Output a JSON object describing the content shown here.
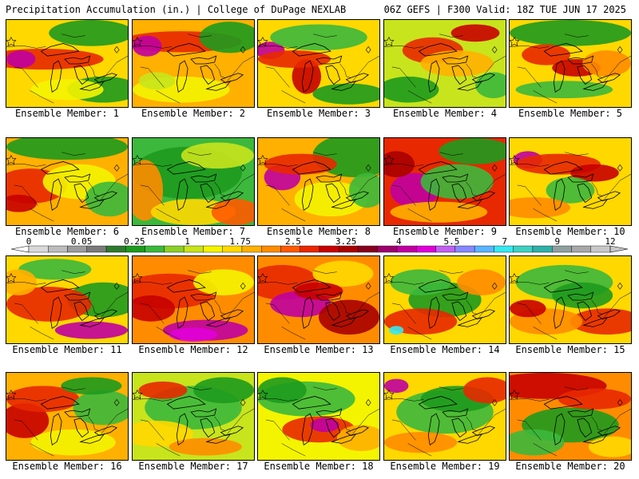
{
  "header": {
    "left_title": "Precipitation Accumulation (in.) | College of DuPage NEXLAB",
    "right_title": "06Z GEFS | F300 Valid: 18Z TUE JUN 17 2025"
  },
  "legend": {
    "tick_labels": [
      "0",
      "0.05",
      "0.25",
      "1",
      "1.75",
      "2.5",
      "3.25",
      "4",
      "5.5",
      "7",
      "9",
      "12"
    ],
    "colors": [
      "#d9d9d9",
      "#bdbdbd",
      "#9c9c9c",
      "#7a7a7a",
      "#2f7a2f",
      "#1e9a1e",
      "#3cb83c",
      "#8ccf2a",
      "#c8e41c",
      "#f4f400",
      "#ffd800",
      "#ffb000",
      "#ff8c00",
      "#ff5a00",
      "#e82800",
      "#c80000",
      "#a80000",
      "#880020",
      "#9c006c",
      "#c000a0",
      "#e000d8",
      "#c060f0",
      "#8888ff",
      "#5cb4ff",
      "#38e8f0",
      "#40d0c0",
      "#30b0a8",
      "#90a0a0",
      "#a8a8a8",
      "#c8c8c8"
    ]
  },
  "panels": [
    {
      "label": "Ensemble Member: 1",
      "base": "#ffd800",
      "blobs": [
        [
          "#e82800",
          0.3,
          0.45,
          0.5,
          0.12
        ],
        [
          "#c000a0",
          0.12,
          0.45,
          0.12,
          0.1
        ],
        [
          "#1e9a1e",
          0.7,
          0.15,
          0.35,
          0.15
        ],
        [
          "#1e9a1e",
          0.8,
          0.8,
          0.3,
          0.15
        ],
        [
          "#f4f400",
          0.5,
          0.8,
          0.3,
          0.12
        ]
      ]
    },
    {
      "label": "Ensemble Member: 2",
      "base": "#ffb000",
      "blobs": [
        [
          "#e82800",
          0.4,
          0.25,
          0.5,
          0.12
        ],
        [
          "#c000a0",
          0.12,
          0.3,
          0.12,
          0.12
        ],
        [
          "#1e9a1e",
          0.8,
          0.2,
          0.25,
          0.18
        ],
        [
          "#f4f400",
          0.4,
          0.8,
          0.4,
          0.15
        ],
        [
          "#c8e41c",
          0.2,
          0.7,
          0.15,
          0.1
        ]
      ]
    },
    {
      "label": "Ensemble Member: 3",
      "base": "#ffd800",
      "blobs": [
        [
          "#c000a0",
          0.1,
          0.35,
          0.12,
          0.1
        ],
        [
          "#3cb83c",
          0.5,
          0.2,
          0.4,
          0.15
        ],
        [
          "#c80000",
          0.4,
          0.65,
          0.12,
          0.2
        ],
        [
          "#1e9a1e",
          0.75,
          0.85,
          0.3,
          0.12
        ],
        [
          "#e82800",
          0.3,
          0.45,
          0.3,
          0.1
        ]
      ]
    },
    {
      "label": "Ensemble Member: 4",
      "base": "#c8e41c",
      "blobs": [
        [
          "#1e9a1e",
          0.2,
          0.8,
          0.25,
          0.15
        ],
        [
          "#e82800",
          0.4,
          0.35,
          0.25,
          0.15
        ],
        [
          "#c80000",
          0.75,
          0.15,
          0.2,
          0.1
        ],
        [
          "#ffb000",
          0.6,
          0.5,
          0.3,
          0.15
        ],
        [
          "#3cb83c",
          0.9,
          0.75,
          0.15,
          0.15
        ]
      ]
    },
    {
      "label": "Ensemble Member: 5",
      "base": "#ffd800",
      "blobs": [
        [
          "#1e9a1e",
          0.5,
          0.15,
          0.5,
          0.15
        ],
        [
          "#e82800",
          0.3,
          0.4,
          0.2,
          0.12
        ],
        [
          "#c80000",
          0.55,
          0.55,
          0.2,
          0.1
        ],
        [
          "#3cb83c",
          0.45,
          0.8,
          0.4,
          0.1
        ],
        [
          "#ff8c00",
          0.8,
          0.5,
          0.2,
          0.15
        ]
      ]
    },
    {
      "label": "Ensemble Member: 6",
      "base": "#ffb000",
      "blobs": [
        [
          "#1e9a1e",
          0.5,
          0.1,
          0.5,
          0.15
        ],
        [
          "#e82800",
          0.2,
          0.55,
          0.3,
          0.2
        ],
        [
          "#f4f400",
          0.6,
          0.5,
          0.3,
          0.2
        ],
        [
          "#3cb83c",
          0.85,
          0.7,
          0.2,
          0.2
        ],
        [
          "#c80000",
          0.1,
          0.75,
          0.15,
          0.1
        ]
      ]
    },
    {
      "label": "Ensemble Member: 7",
      "base": "#3cb83c",
      "blobs": [
        [
          "#1e9a1e",
          0.45,
          0.4,
          0.45,
          0.3
        ],
        [
          "#ff8c00",
          0.1,
          0.6,
          0.15,
          0.35
        ],
        [
          "#ffd800",
          0.5,
          0.85,
          0.35,
          0.15
        ],
        [
          "#ff5a00",
          0.85,
          0.85,
          0.2,
          0.15
        ],
        [
          "#c8e41c",
          0.7,
          0.2,
          0.3,
          0.15
        ]
      ]
    },
    {
      "label": "Ensemble Member: 8",
      "base": "#ffb000",
      "blobs": [
        [
          "#1e9a1e",
          0.8,
          0.2,
          0.35,
          0.25
        ],
        [
          "#c000a0",
          0.2,
          0.45,
          0.15,
          0.15
        ],
        [
          "#e82800",
          0.35,
          0.3,
          0.3,
          0.12
        ],
        [
          "#f4f400",
          0.6,
          0.7,
          0.3,
          0.2
        ],
        [
          "#3cb83c",
          0.9,
          0.6,
          0.15,
          0.2
        ]
      ]
    },
    {
      "label": "Ensemble Member: 9",
      "base": "#e82800",
      "blobs": [
        [
          "#c000a0",
          0.25,
          0.6,
          0.2,
          0.2
        ],
        [
          "#1e9a1e",
          0.75,
          0.15,
          0.3,
          0.15
        ],
        [
          "#3cb83c",
          0.6,
          0.5,
          0.3,
          0.2
        ],
        [
          "#ffb000",
          0.45,
          0.85,
          0.4,
          0.12
        ],
        [
          "#a80000",
          0.1,
          0.3,
          0.15,
          0.15
        ]
      ]
    },
    {
      "label": "Ensemble Member: 10",
      "base": "#ffd800",
      "blobs": [
        [
          "#c000a0",
          0.15,
          0.25,
          0.12,
          0.1
        ],
        [
          "#e82800",
          0.4,
          0.3,
          0.35,
          0.12
        ],
        [
          "#c80000",
          0.7,
          0.4,
          0.2,
          0.1
        ],
        [
          "#3cb83c",
          0.5,
          0.6,
          0.2,
          0.15
        ],
        [
          "#ff8c00",
          0.2,
          0.8,
          0.3,
          0.12
        ]
      ]
    },
    {
      "label": "Ensemble Member: 11",
      "base": "#ffd800",
      "blobs": [
        [
          "#1e9a1e",
          0.8,
          0.5,
          0.3,
          0.2
        ],
        [
          "#e82800",
          0.35,
          0.55,
          0.35,
          0.2
        ],
        [
          "#c000a0",
          0.7,
          0.85,
          0.3,
          0.1
        ],
        [
          "#3cb83c",
          0.4,
          0.15,
          0.3,
          0.12
        ],
        [
          "#ffb000",
          0.1,
          0.3,
          0.15,
          0.15
        ]
      ]
    },
    {
      "label": "Ensemble Member: 12",
      "base": "#ff8c00",
      "blobs": [
        [
          "#e82800",
          0.3,
          0.4,
          0.4,
          0.2
        ],
        [
          "#c000a0",
          0.6,
          0.85,
          0.35,
          0.12
        ],
        [
          "#e000d8",
          0.5,
          0.9,
          0.2,
          0.08
        ],
        [
          "#f4f400",
          0.75,
          0.3,
          0.25,
          0.15
        ],
        [
          "#c80000",
          0.15,
          0.6,
          0.2,
          0.15
        ]
      ]
    },
    {
      "label": "Ensemble Member: 13",
      "base": "#ff8c00",
      "blobs": [
        [
          "#e82800",
          0.2,
          0.3,
          0.3,
          0.2
        ],
        [
          "#c000a0",
          0.35,
          0.55,
          0.25,
          0.15
        ],
        [
          "#a80000",
          0.75,
          0.7,
          0.25,
          0.2
        ],
        [
          "#ffd800",
          0.7,
          0.2,
          0.25,
          0.15
        ],
        [
          "#c80000",
          0.5,
          0.4,
          0.2,
          0.1
        ]
      ]
    },
    {
      "label": "Ensemble Member: 14",
      "base": "#ffd800",
      "blobs": [
        [
          "#1e9a1e",
          0.5,
          0.5,
          0.3,
          0.2
        ],
        [
          "#3cb83c",
          0.3,
          0.3,
          0.25,
          0.15
        ],
        [
          "#e82800",
          0.3,
          0.75,
          0.3,
          0.15
        ],
        [
          "#38e8f0",
          0.1,
          0.85,
          0.06,
          0.05
        ],
        [
          "#ff8c00",
          0.8,
          0.3,
          0.2,
          0.15
        ]
      ]
    },
    {
      "label": "Ensemble Member: 15",
      "base": "#ffd800",
      "blobs": [
        [
          "#3cb83c",
          0.45,
          0.3,
          0.4,
          0.2
        ],
        [
          "#1e9a1e",
          0.6,
          0.45,
          0.25,
          0.15
        ],
        [
          "#e82800",
          0.8,
          0.75,
          0.3,
          0.15
        ],
        [
          "#ff8c00",
          0.3,
          0.75,
          0.3,
          0.15
        ],
        [
          "#c80000",
          0.15,
          0.6,
          0.15,
          0.1
        ]
      ]
    },
    {
      "label": "Ensemble Member: 16",
      "base": "#ffb000",
      "blobs": [
        [
          "#c80000",
          0.15,
          0.55,
          0.2,
          0.2
        ],
        [
          "#e82800",
          0.3,
          0.3,
          0.3,
          0.15
        ],
        [
          "#3cb83c",
          0.8,
          0.4,
          0.25,
          0.2
        ],
        [
          "#f4f400",
          0.55,
          0.8,
          0.35,
          0.15
        ],
        [
          "#1e9a1e",
          0.7,
          0.15,
          0.25,
          0.1
        ]
      ]
    },
    {
      "label": "Ensemble Member: 17",
      "base": "#c8e41c",
      "blobs": [
        [
          "#3cb83c",
          0.5,
          0.4,
          0.4,
          0.25
        ],
        [
          "#ffd800",
          0.2,
          0.7,
          0.3,
          0.15
        ],
        [
          "#e82800",
          0.25,
          0.2,
          0.2,
          0.1
        ],
        [
          "#1e9a1e",
          0.75,
          0.2,
          0.25,
          0.15
        ],
        [
          "#ff8c00",
          0.6,
          0.85,
          0.3,
          0.1
        ]
      ]
    },
    {
      "label": "Ensemble Member: 18",
      "base": "#f4f400",
      "blobs": [
        [
          "#3cb83c",
          0.4,
          0.3,
          0.4,
          0.2
        ],
        [
          "#e82800",
          0.5,
          0.65,
          0.3,
          0.15
        ],
        [
          "#c000a0",
          0.55,
          0.6,
          0.12,
          0.08
        ],
        [
          "#1e9a1e",
          0.2,
          0.2,
          0.2,
          0.15
        ],
        [
          "#ffb000",
          0.85,
          0.75,
          0.2,
          0.15
        ]
      ]
    },
    {
      "label": "Ensemble Member: 19",
      "base": "#ffd800",
      "blobs": [
        [
          "#3cb83c",
          0.5,
          0.45,
          0.4,
          0.25
        ],
        [
          "#1e9a1e",
          0.6,
          0.3,
          0.3,
          0.15
        ],
        [
          "#e82800",
          0.85,
          0.2,
          0.2,
          0.15
        ],
        [
          "#c000a0",
          0.1,
          0.15,
          0.1,
          0.08
        ],
        [
          "#ff8c00",
          0.3,
          0.8,
          0.3,
          0.12
        ]
      ]
    },
    {
      "label": "Ensemble Member: 20",
      "base": "#ff8c00",
      "blobs": [
        [
          "#c80000",
          0.3,
          0.15,
          0.5,
          0.15
        ],
        [
          "#1e9a1e",
          0.5,
          0.6,
          0.4,
          0.2
        ],
        [
          "#3cb83c",
          0.2,
          0.8,
          0.25,
          0.15
        ],
        [
          "#e82800",
          0.7,
          0.3,
          0.3,
          0.12
        ],
        [
          "#ffd800",
          0.85,
          0.85,
          0.2,
          0.12
        ]
      ]
    }
  ]
}
